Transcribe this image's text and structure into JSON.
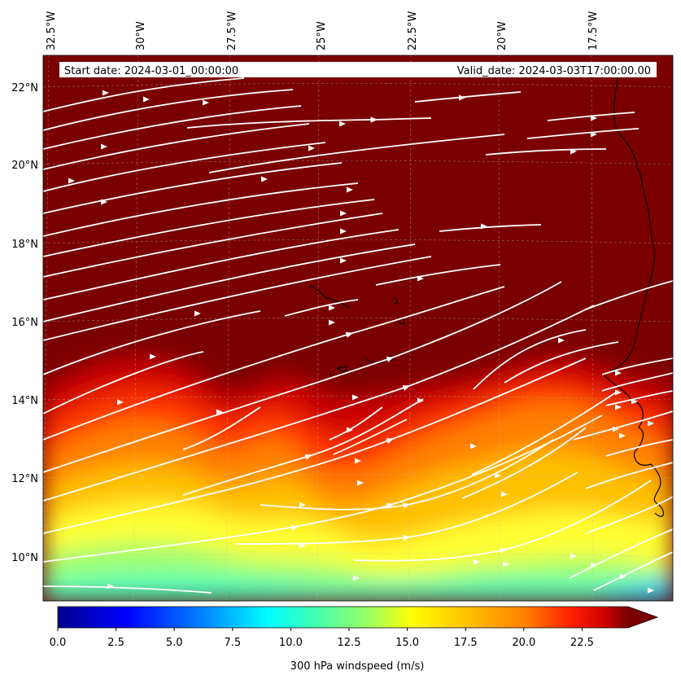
{
  "map": {
    "start_label": "Start date: 2024-03-01_00:00:00",
    "valid_label": "Valid_date: 2024-03-03T17:00:00.00",
    "lon_ticks": [
      "32.5°W",
      "30°W",
      "27.5°W",
      "25°W",
      "22.5°W",
      "20°W",
      "17.5°W"
    ],
    "lat_ticks": [
      "22°N",
      "20°N",
      "18°N",
      "16°N",
      "14°N",
      "12°N",
      "10°N"
    ]
  },
  "colorbar": {
    "label": "300 hPa windspeed (m/s)",
    "ticks": [
      "0.0",
      "2.5",
      "5.0",
      "7.5",
      "10.0",
      "12.5",
      "15.0",
      "17.5",
      "20.0",
      "22.5"
    ],
    "colors": [
      "#00008b",
      "#0000ff",
      "#0080ff",
      "#00ffff",
      "#40ffb0",
      "#a0ff60",
      "#ffff00",
      "#ffc000",
      "#ff8000",
      "#ff2000",
      "#cc0000",
      "#7a0000"
    ]
  },
  "colors": {
    "saturated": "#7a0000",
    "streamline": "#ffffff",
    "coast": "#000000"
  }
}
